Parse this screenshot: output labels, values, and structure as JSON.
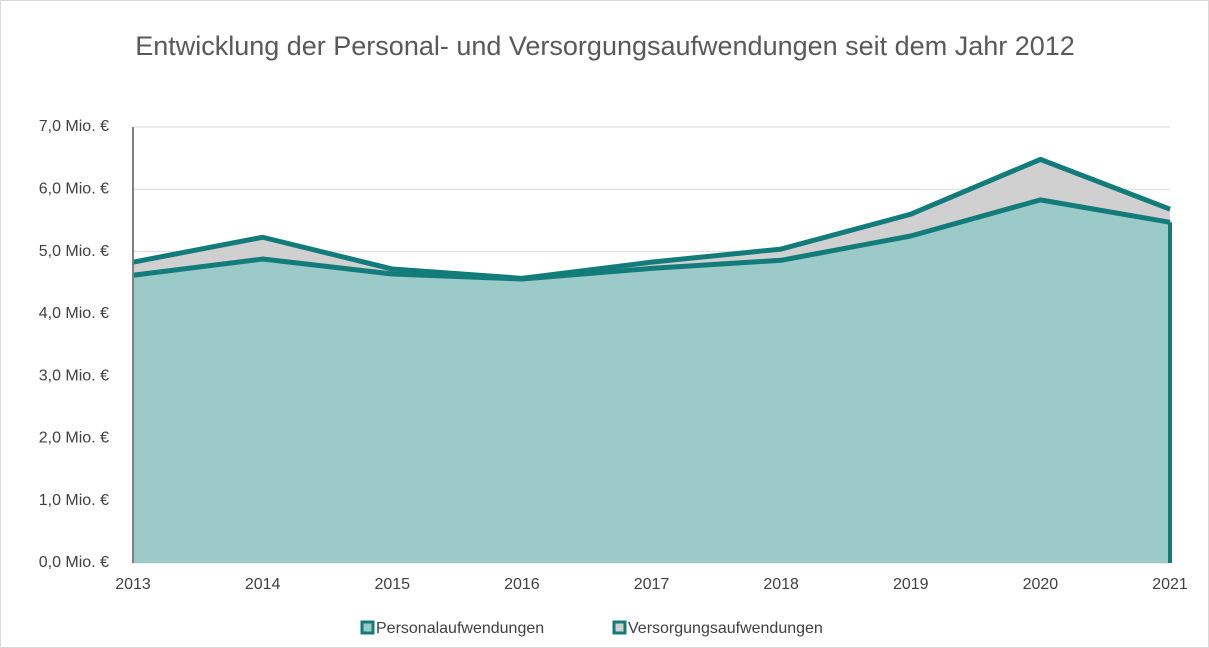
{
  "chart_data": {
    "type": "stacked_area",
    "title": "Entwicklung der Personal- und Versorgungsaufwendungen seit dem Jahr 2012",
    "categories": [
      "2013",
      "2014",
      "2015",
      "2016",
      "2017",
      "2018",
      "2019",
      "2020",
      "2021"
    ],
    "series": [
      {
        "name": "Personalaufwendungen",
        "color": "#127c7a",
        "fill": "#9ccac8",
        "values": [
          4.62,
          4.88,
          4.64,
          4.56,
          4.73,
          4.86,
          5.25,
          5.83,
          5.47
        ]
      },
      {
        "name": "Versorgungsaufwendungen",
        "color": "#127c7a",
        "fill": "#d0d0d0",
        "values": [
          0.21,
          0.35,
          0.08,
          0.01,
          0.1,
          0.18,
          0.35,
          0.65,
          0.21
        ]
      }
    ],
    "ylim": [
      0,
      7
    ],
    "yticks": [
      {
        "value": 0,
        "label": "0,0 Mio. €"
      },
      {
        "value": 1,
        "label": "1,0 Mio. €"
      },
      {
        "value": 2,
        "label": "2,0 Mio. €"
      },
      {
        "value": 3,
        "label": "3,0 Mio. €"
      },
      {
        "value": 4,
        "label": "4,0 Mio. €"
      },
      {
        "value": 5,
        "label": "5,0 Mio. €"
      },
      {
        "value": 6,
        "label": "6,0 Mio. €"
      },
      {
        "value": 7,
        "label": "7,0 Mio. €"
      }
    ],
    "grid": true,
    "legend": "bottom"
  }
}
